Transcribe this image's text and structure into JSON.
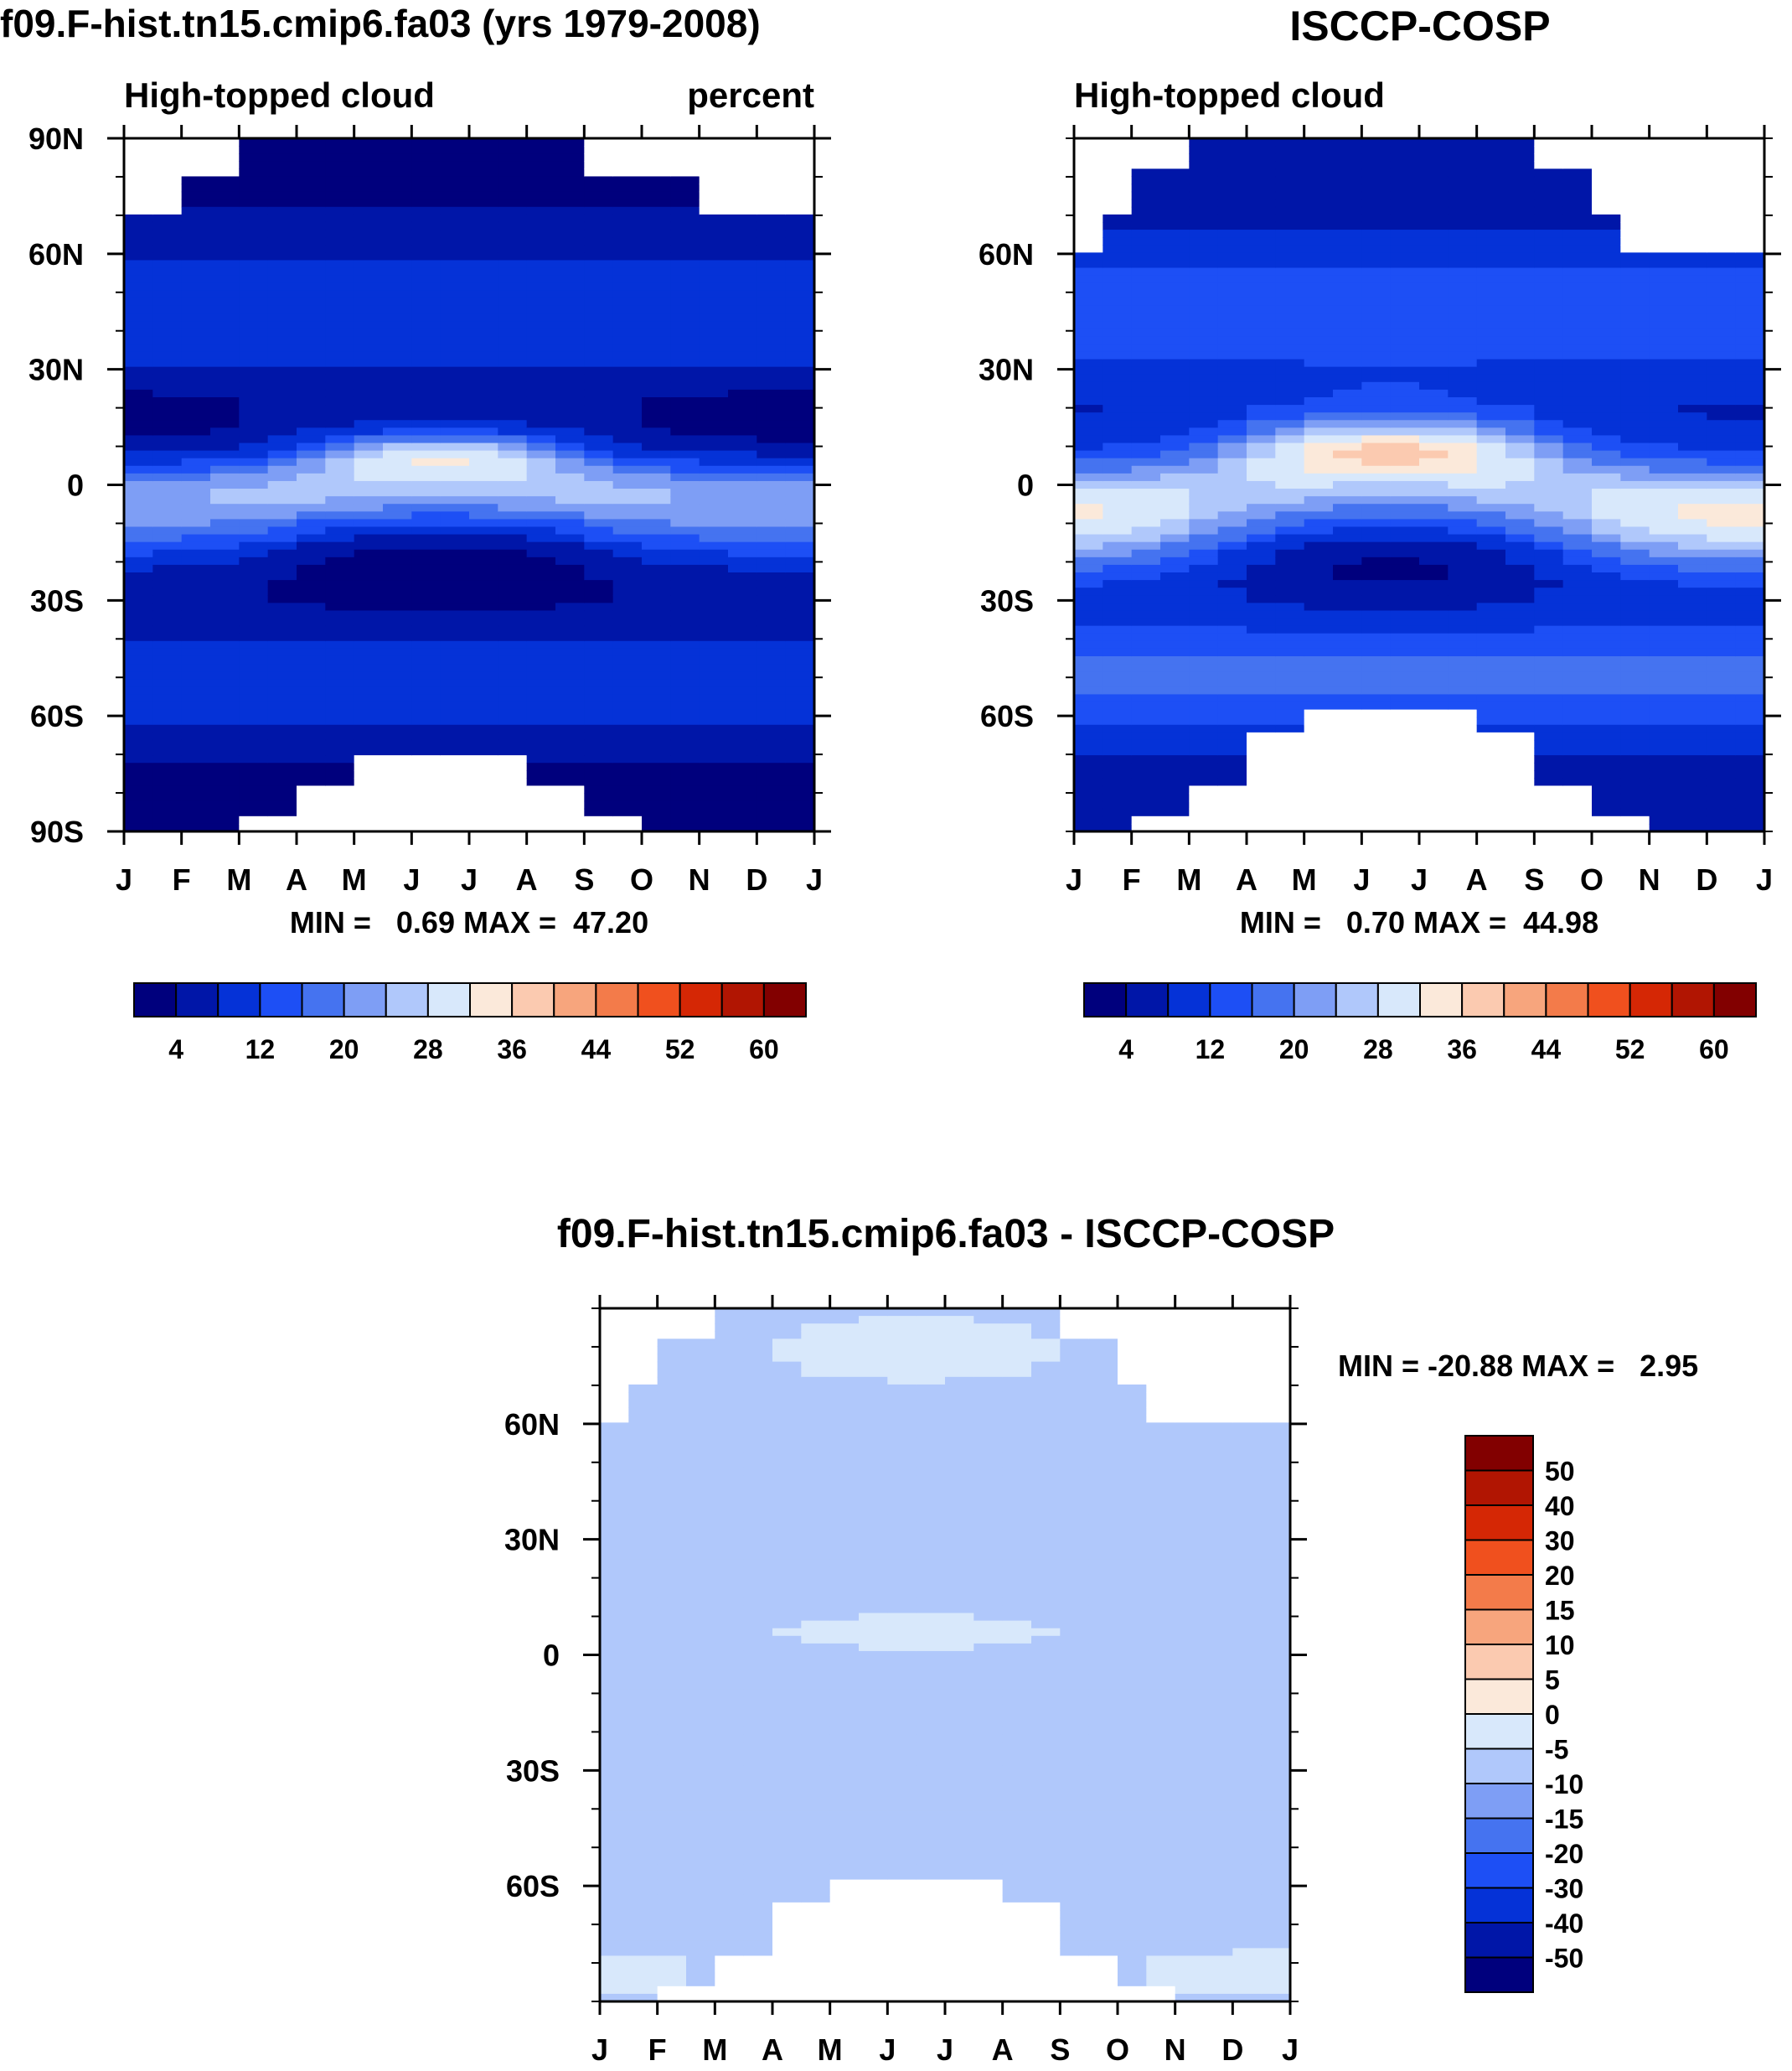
{
  "figure": {
    "title_left": "f09.F-hist.tn15.cmip6.fa03 (yrs 1979-2008)",
    "title_right": "ISCCP-COSP",
    "title_bottom": "f09.F-hist.tn15.cmip6.fa03 - ISCCP-COSP"
  },
  "colors": {
    "abs_palette": [
      "#00007d",
      "#0016a8",
      "#0532d7",
      "#1d4ff5",
      "#4573f0",
      "#7e9ef5",
      "#b0c8fb",
      "#d8e8fb",
      "#fbe9da",
      "#fbcab0",
      "#f7a57d",
      "#f37b4a",
      "#f0501e",
      "#d52705",
      "#b11502",
      "#820000"
    ],
    "diff_palette": [
      "#00007d",
      "#0016a8",
      "#0532d7",
      "#1d4ff5",
      "#4573f0",
      "#7e9ef5",
      "#b0c8fb",
      "#d8e8fb",
      "#fbe9da",
      "#fbcab0",
      "#f7a57d",
      "#f37b4a",
      "#f0501e",
      "#d52705",
      "#b11502",
      "#820000"
    ],
    "missing": "#ffffff"
  },
  "chart_data": [
    {
      "type": "heatmap",
      "panel": "model",
      "title": "f09.F-hist.tn15.cmip6.fa03 (yrs 1979-2008)",
      "left_label": "High-topped cloud",
      "right_label": "percent",
      "x_tick_labels": [
        "J",
        "F",
        "M",
        "A",
        "M",
        "J",
        "J",
        "A",
        "S",
        "O",
        "N",
        "D",
        "J"
      ],
      "y_tick_labels": [
        "90N",
        "60N",
        "30N",
        "0",
        "30S",
        "60S",
        "90S"
      ],
      "y_tick_values": [
        90,
        60,
        30,
        0,
        -30,
        -60,
        -90
      ],
      "ylim": [
        -90,
        90
      ],
      "stats_label": "MIN =   0.69 MAX =  47.20",
      "min": 0.69,
      "max": 47.2,
      "colorbar_levels": [
        0,
        4,
        8,
        12,
        16,
        20,
        24,
        28,
        32,
        36,
        40,
        44,
        48,
        52,
        56,
        60
      ],
      "colorbar_labels": [
        "4",
        "12",
        "20",
        "28",
        "36",
        "44",
        "52",
        "60"
      ]
    },
    {
      "type": "heatmap",
      "panel": "obs",
      "title": "ISCCP-COSP",
      "left_label": "High-topped cloud",
      "x_tick_labels": [
        "J",
        "F",
        "M",
        "A",
        "M",
        "J",
        "J",
        "A",
        "S",
        "O",
        "N",
        "D",
        "J"
      ],
      "y_tick_labels": [
        "60N",
        "30N",
        "0",
        "30S",
        "60S"
      ],
      "y_tick_values": [
        60,
        30,
        0,
        -30,
        -60
      ],
      "ylim": [
        -90,
        90
      ],
      "stats_label": "MIN =   0.70 MAX =  44.98",
      "min": 0.7,
      "max": 44.98,
      "colorbar_levels": [
        0,
        4,
        8,
        12,
        16,
        20,
        24,
        28,
        32,
        36,
        40,
        44,
        48,
        52,
        56,
        60
      ],
      "colorbar_labels": [
        "4",
        "12",
        "20",
        "28",
        "36",
        "44",
        "52",
        "60"
      ]
    },
    {
      "type": "heatmap",
      "panel": "difference",
      "title": "f09.F-hist.tn15.cmip6.fa03 - ISCCP-COSP",
      "x_tick_labels": [
        "J",
        "F",
        "M",
        "A",
        "M",
        "J",
        "J",
        "A",
        "S",
        "O",
        "N",
        "D",
        "J"
      ],
      "y_tick_labels": [
        "60N",
        "30N",
        "0",
        "30S",
        "60S"
      ],
      "y_tick_values": [
        60,
        30,
        0,
        -30,
        -60
      ],
      "ylim": [
        -90,
        90
      ],
      "stats_label": "MIN = -20.88 MAX =   2.95",
      "min": -20.88,
      "max": 2.95,
      "colorbar_levels": [
        -60,
        -50,
        -40,
        -30,
        -20,
        -15,
        -10,
        -5,
        0,
        5,
        10,
        15,
        20,
        30,
        40,
        50
      ],
      "colorbar_labels": [
        "50",
        "40",
        "30",
        "20",
        "15",
        "10",
        "5",
        "0",
        "-5",
        "-10",
        "-15",
        "-20",
        "-30",
        "-40",
        "-50"
      ]
    }
  ]
}
